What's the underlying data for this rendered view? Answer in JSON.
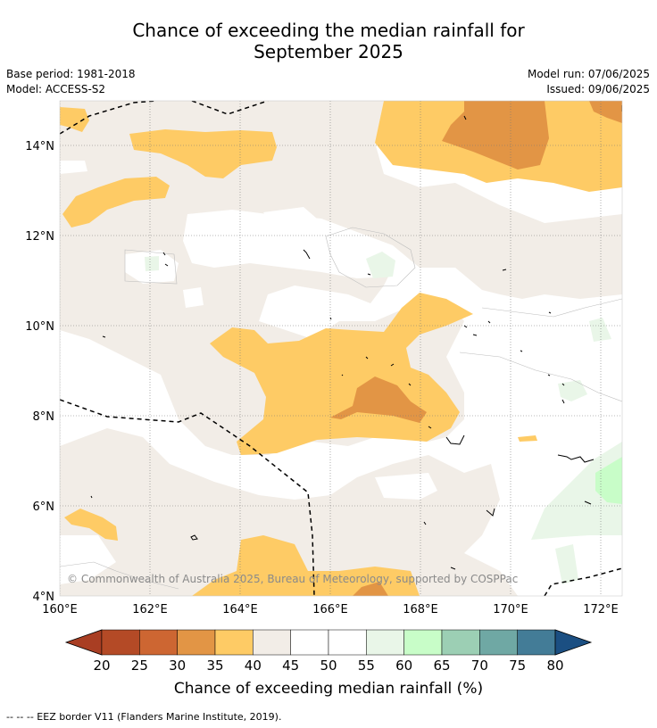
{
  "header": {
    "title_line1": "Chance of exceeding the median rainfall for",
    "title_line2": "September 2025",
    "base_period": "Base period: 1981-2018",
    "model": "Model: ACCESS-S2",
    "model_run": "Model run: 07/06/2025",
    "issued": "Issued: 09/06/2025"
  },
  "map": {
    "lon_labels": [
      "160°E",
      "162°E",
      "164°E",
      "166°E",
      "168°E",
      "170°E",
      "172°E"
    ],
    "lat_labels": [
      "14°N",
      "12°N",
      "10°N",
      "8°N",
      "6°N",
      "4°N"
    ],
    "lon_range": [
      160,
      172.6
    ],
    "lat_range": [
      3.9,
      15
    ],
    "copyright": "© Commonwealth of Australia 2025, Bureau of Meteorology, supported by COSPPac"
  },
  "colorbar": {
    "levels": [
      "20",
      "25",
      "30",
      "35",
      "40",
      "45",
      "50",
      "55",
      "60",
      "65",
      "70",
      "75",
      "80"
    ],
    "colors": [
      "#a93e23",
      "#b44a26",
      "#cd6632",
      "#e29545",
      "#fecb65",
      "#f2ede7",
      "#ffffff",
      "#ffffff",
      "#e9f6e8",
      "#c8fdc8",
      "#9ccfb4",
      "#6fa8a4",
      "#437c97",
      "#1b4f82"
    ],
    "title": "Chance of exceeding median rainfall (%)"
  },
  "footnote": "--  --  -- EEZ border V11 (Flanders Marine Institute, 2019)."
}
